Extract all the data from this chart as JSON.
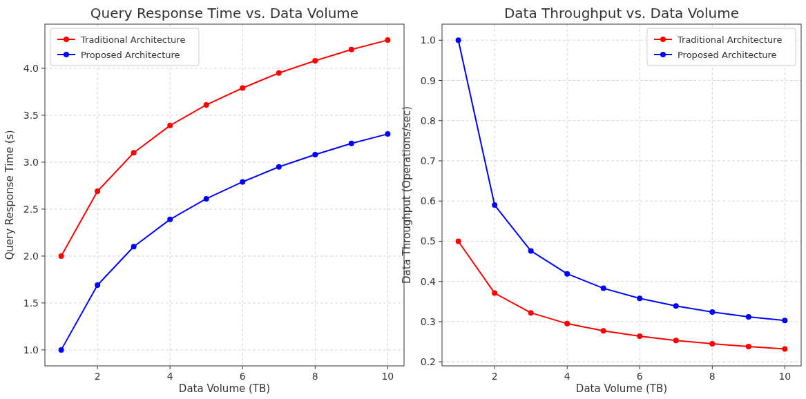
{
  "chart_data": [
    {
      "type": "line",
      "title": "Query Response Time vs. Data Volume",
      "xlabel": "Data Volume (TB)",
      "ylabel": "Query Response Time (s)",
      "x": [
        1,
        2,
        3,
        4,
        5,
        6,
        7,
        8,
        9,
        10
      ],
      "xlim": [
        0.55,
        10.45
      ],
      "xticks": [
        2,
        4,
        6,
        8,
        10
      ],
      "ylim": [
        0.83,
        4.47
      ],
      "yticks": [
        {
          "value": 1,
          "label": "1.0"
        },
        {
          "value": 1.5,
          "label": "1.5"
        },
        {
          "value": 2,
          "label": "2.0"
        },
        {
          "value": 2.5,
          "label": "2.5"
        },
        {
          "value": 3,
          "label": "3.0"
        },
        {
          "value": 3.5,
          "label": "3.5"
        },
        {
          "value": 4,
          "label": "4.0"
        }
      ],
      "grid": true,
      "legend": "top left",
      "marker": "circle",
      "line_style": "solid",
      "series": [
        {
          "name": "Traditional Architecture",
          "color": "#ff0000",
          "values": [
            2.0,
            2.69,
            3.1,
            3.39,
            3.61,
            3.79,
            3.95,
            4.08,
            4.2,
            4.3
          ]
        },
        {
          "name": "Proposed Architecture",
          "color": "#0000ff",
          "values": [
            1.0,
            1.69,
            2.1,
            2.39,
            2.61,
            2.79,
            2.95,
            3.08,
            3.2,
            3.3
          ]
        }
      ]
    },
    {
      "type": "line",
      "title": "Data Throughput vs. Data Volume",
      "xlabel": "Data Volume (TB)",
      "ylabel": "Data Throughput (Operations/sec)",
      "x": [
        1,
        2,
        3,
        4,
        5,
        6,
        7,
        8,
        9,
        10
      ],
      "xlim": [
        0.55,
        10.45
      ],
      "xticks": [
        2,
        4,
        6,
        8,
        10
      ],
      "ylim": [
        0.19,
        1.04
      ],
      "yticks": [
        {
          "value": 0.2,
          "label": "0.2"
        },
        {
          "value": 0.3,
          "label": "0.3"
        },
        {
          "value": 0.4,
          "label": "0.4"
        },
        {
          "value": 0.5,
          "label": "0.5"
        },
        {
          "value": 0.6,
          "label": "0.6"
        },
        {
          "value": 0.7,
          "label": "0.7"
        },
        {
          "value": 0.8,
          "label": "0.8"
        },
        {
          "value": 0.9,
          "label": "0.9"
        },
        {
          "value": 1.0,
          "label": "1.0"
        }
      ],
      "grid": true,
      "legend": "top right",
      "marker": "circle",
      "line_style": "solid",
      "series": [
        {
          "name": "Traditional Architecture",
          "color": "#ff0000",
          "values": [
            0.5,
            0.371,
            0.322,
            0.295,
            0.277,
            0.264,
            0.253,
            0.245,
            0.238,
            0.232
          ]
        },
        {
          "name": "Proposed Architecture",
          "color": "#0000ff",
          "values": [
            1.0,
            0.59,
            0.476,
            0.419,
            0.383,
            0.358,
            0.339,
            0.324,
            0.312,
            0.303
          ]
        }
      ]
    }
  ]
}
